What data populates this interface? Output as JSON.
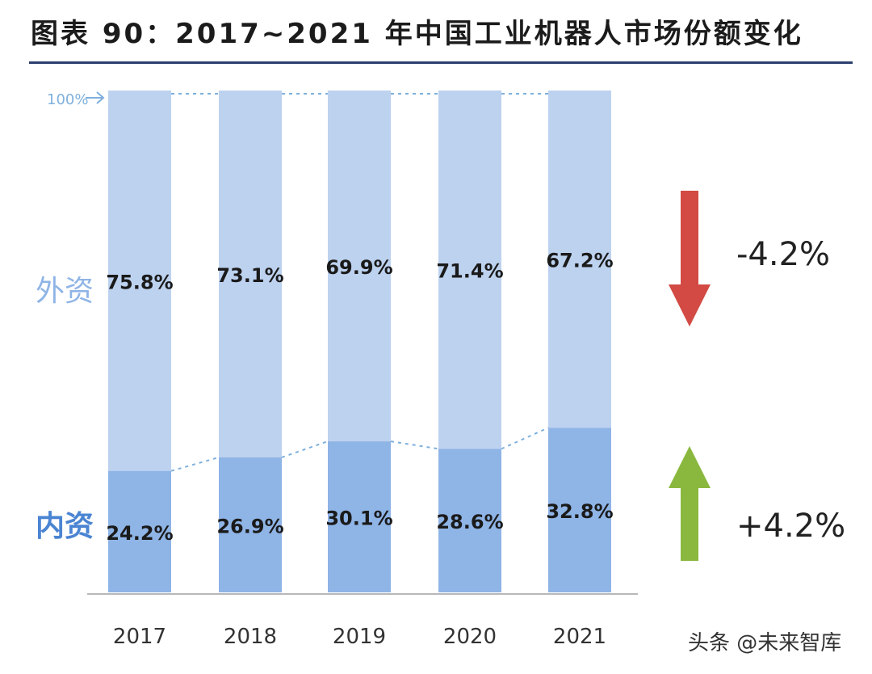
{
  "title": "图表 90：2017~2021 年中国工业机器人市场份额变化",
  "chart_data": {
    "type": "bar",
    "stacked": true,
    "normalized": true,
    "categories": [
      "2017",
      "2018",
      "2019",
      "2020",
      "2021"
    ],
    "series": [
      {
        "name": "内资",
        "values": [
          24.2,
          26.9,
          30.1,
          28.6,
          32.8
        ],
        "labels": [
          "24.2%",
          "26.9%",
          "30.1%",
          "28.6%",
          "32.8%"
        ],
        "color": "#8fb4e6"
      },
      {
        "name": "外资",
        "values": [
          75.8,
          73.1,
          69.9,
          71.4,
          67.2
        ],
        "labels": [
          "75.8%",
          "73.1%",
          "69.9%",
          "71.4%",
          "67.2%"
        ],
        "color": "#bdd2ef"
      }
    ],
    "ylim": [
      0,
      100
    ],
    "top_marker": "100%",
    "annotations": [
      {
        "text": "-4.2%",
        "direction": "down",
        "color": "#d24a43"
      },
      {
        "text": "+4.2%",
        "direction": "up",
        "color": "#8ab83f"
      }
    ],
    "label_color_foreign": "#8fb4e6",
    "label_color_domestic": "#4a84d2"
  },
  "watermark": "头条 @未来智库"
}
